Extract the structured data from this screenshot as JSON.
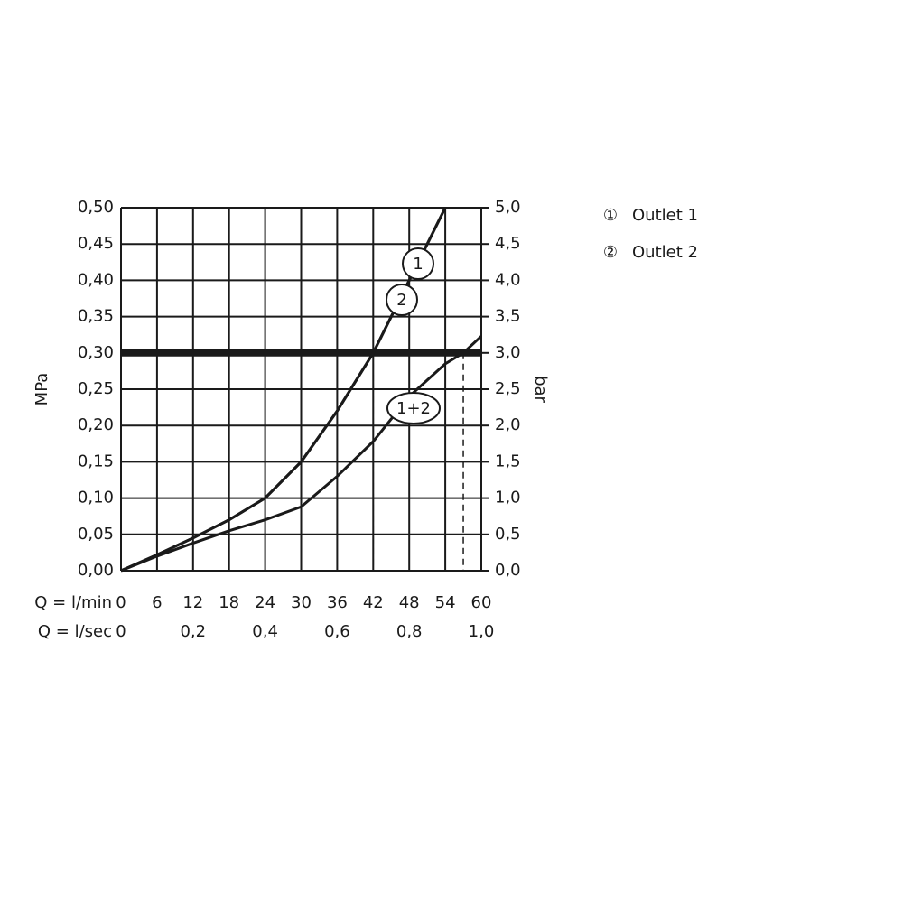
{
  "chart_data": {
    "type": "line",
    "y_label": "MPa",
    "y2_label": "bar",
    "x_label": "Q = l/min",
    "x2_label": "Q = l/sec",
    "xlim": [
      0,
      60
    ],
    "xticks": [
      0,
      6,
      12,
      18,
      24,
      30,
      36,
      42,
      48,
      54,
      60
    ],
    "x2lim": [
      0,
      1
    ],
    "x2ticks": [
      0,
      {
        "value": 0.2,
        "label": "0,2"
      },
      {
        "value": 0.4,
        "label": "0,4"
      },
      {
        "value": 0.6,
        "label": "0,6"
      },
      {
        "value": 0.8,
        "label": "0,8"
      },
      {
        "value": 1,
        "label": "1,0"
      }
    ],
    "ylim": [
      0,
      0.5
    ],
    "yticks": [
      {
        "value": 0,
        "label": "0,00"
      },
      {
        "value": 0.05,
        "label": "0,05"
      },
      {
        "value": 0.1,
        "label": "0,10"
      },
      {
        "value": 0.15,
        "label": "0,15"
      },
      {
        "value": 0.2,
        "label": "0,20"
      },
      {
        "value": 0.25,
        "label": "0,25"
      },
      {
        "value": 0.3,
        "label": "0,30"
      },
      {
        "value": 0.35,
        "label": "0,35"
      },
      {
        "value": 0.4,
        "label": "0,40"
      },
      {
        "value": 0.45,
        "label": "0,45"
      },
      {
        "value": 0.5,
        "label": "0,50"
      }
    ],
    "y2lim": [
      0,
      5
    ],
    "y2ticks": [
      {
        "value": 0,
        "label": "0,0"
      },
      {
        "value": 0.5,
        "label": "0,5"
      },
      {
        "value": 1,
        "label": "1,0"
      },
      {
        "value": 1.5,
        "label": "1,5"
      },
      {
        "value": 2,
        "label": "2,0"
      },
      {
        "value": 2.5,
        "label": "2,5"
      },
      {
        "value": 3,
        "label": "3,0"
      },
      {
        "value": 3.5,
        "label": "3,5"
      },
      {
        "value": 4,
        "label": "4,0"
      },
      {
        "value": 4.5,
        "label": "4,5"
      },
      {
        "value": 5,
        "label": "5,0"
      }
    ],
    "grid": true,
    "reference_line": 0.3,
    "drop_lines": [
      42,
      57
    ],
    "series": [
      {
        "name": "Outlet 1",
        "symbol": "①",
        "label": "1",
        "color": "#1a1a1a",
        "x": [
          0,
          6,
          12,
          18,
          24,
          30,
          36,
          42,
          48,
          54
        ],
        "values": [
          0,
          0.022,
          0.045,
          0.07,
          0.1,
          0.15,
          0.22,
          0.3,
          0.4,
          0.5
        ]
      },
      {
        "name": "Outlet 2",
        "symbol": "②",
        "label": "2",
        "color": "#1a1a1a",
        "x": [
          0,
          6,
          12,
          18,
          24,
          30,
          36,
          42,
          48,
          54
        ],
        "values": [
          0,
          0.022,
          0.045,
          0.07,
          0.1,
          0.15,
          0.22,
          0.3,
          0.4,
          0.5
        ]
      }
    ],
    "combined": {
      "label": "1+2",
      "color": "#1a1a1a",
      "x": [
        0,
        6,
        12,
        18,
        24,
        30,
        36,
        42,
        48,
        54,
        57,
        60
      ],
      "values": [
        0,
        0.02,
        0.038,
        0.055,
        0.07,
        0.088,
        0.13,
        0.178,
        0.24,
        0.285,
        0.3,
        0.323
      ]
    }
  }
}
